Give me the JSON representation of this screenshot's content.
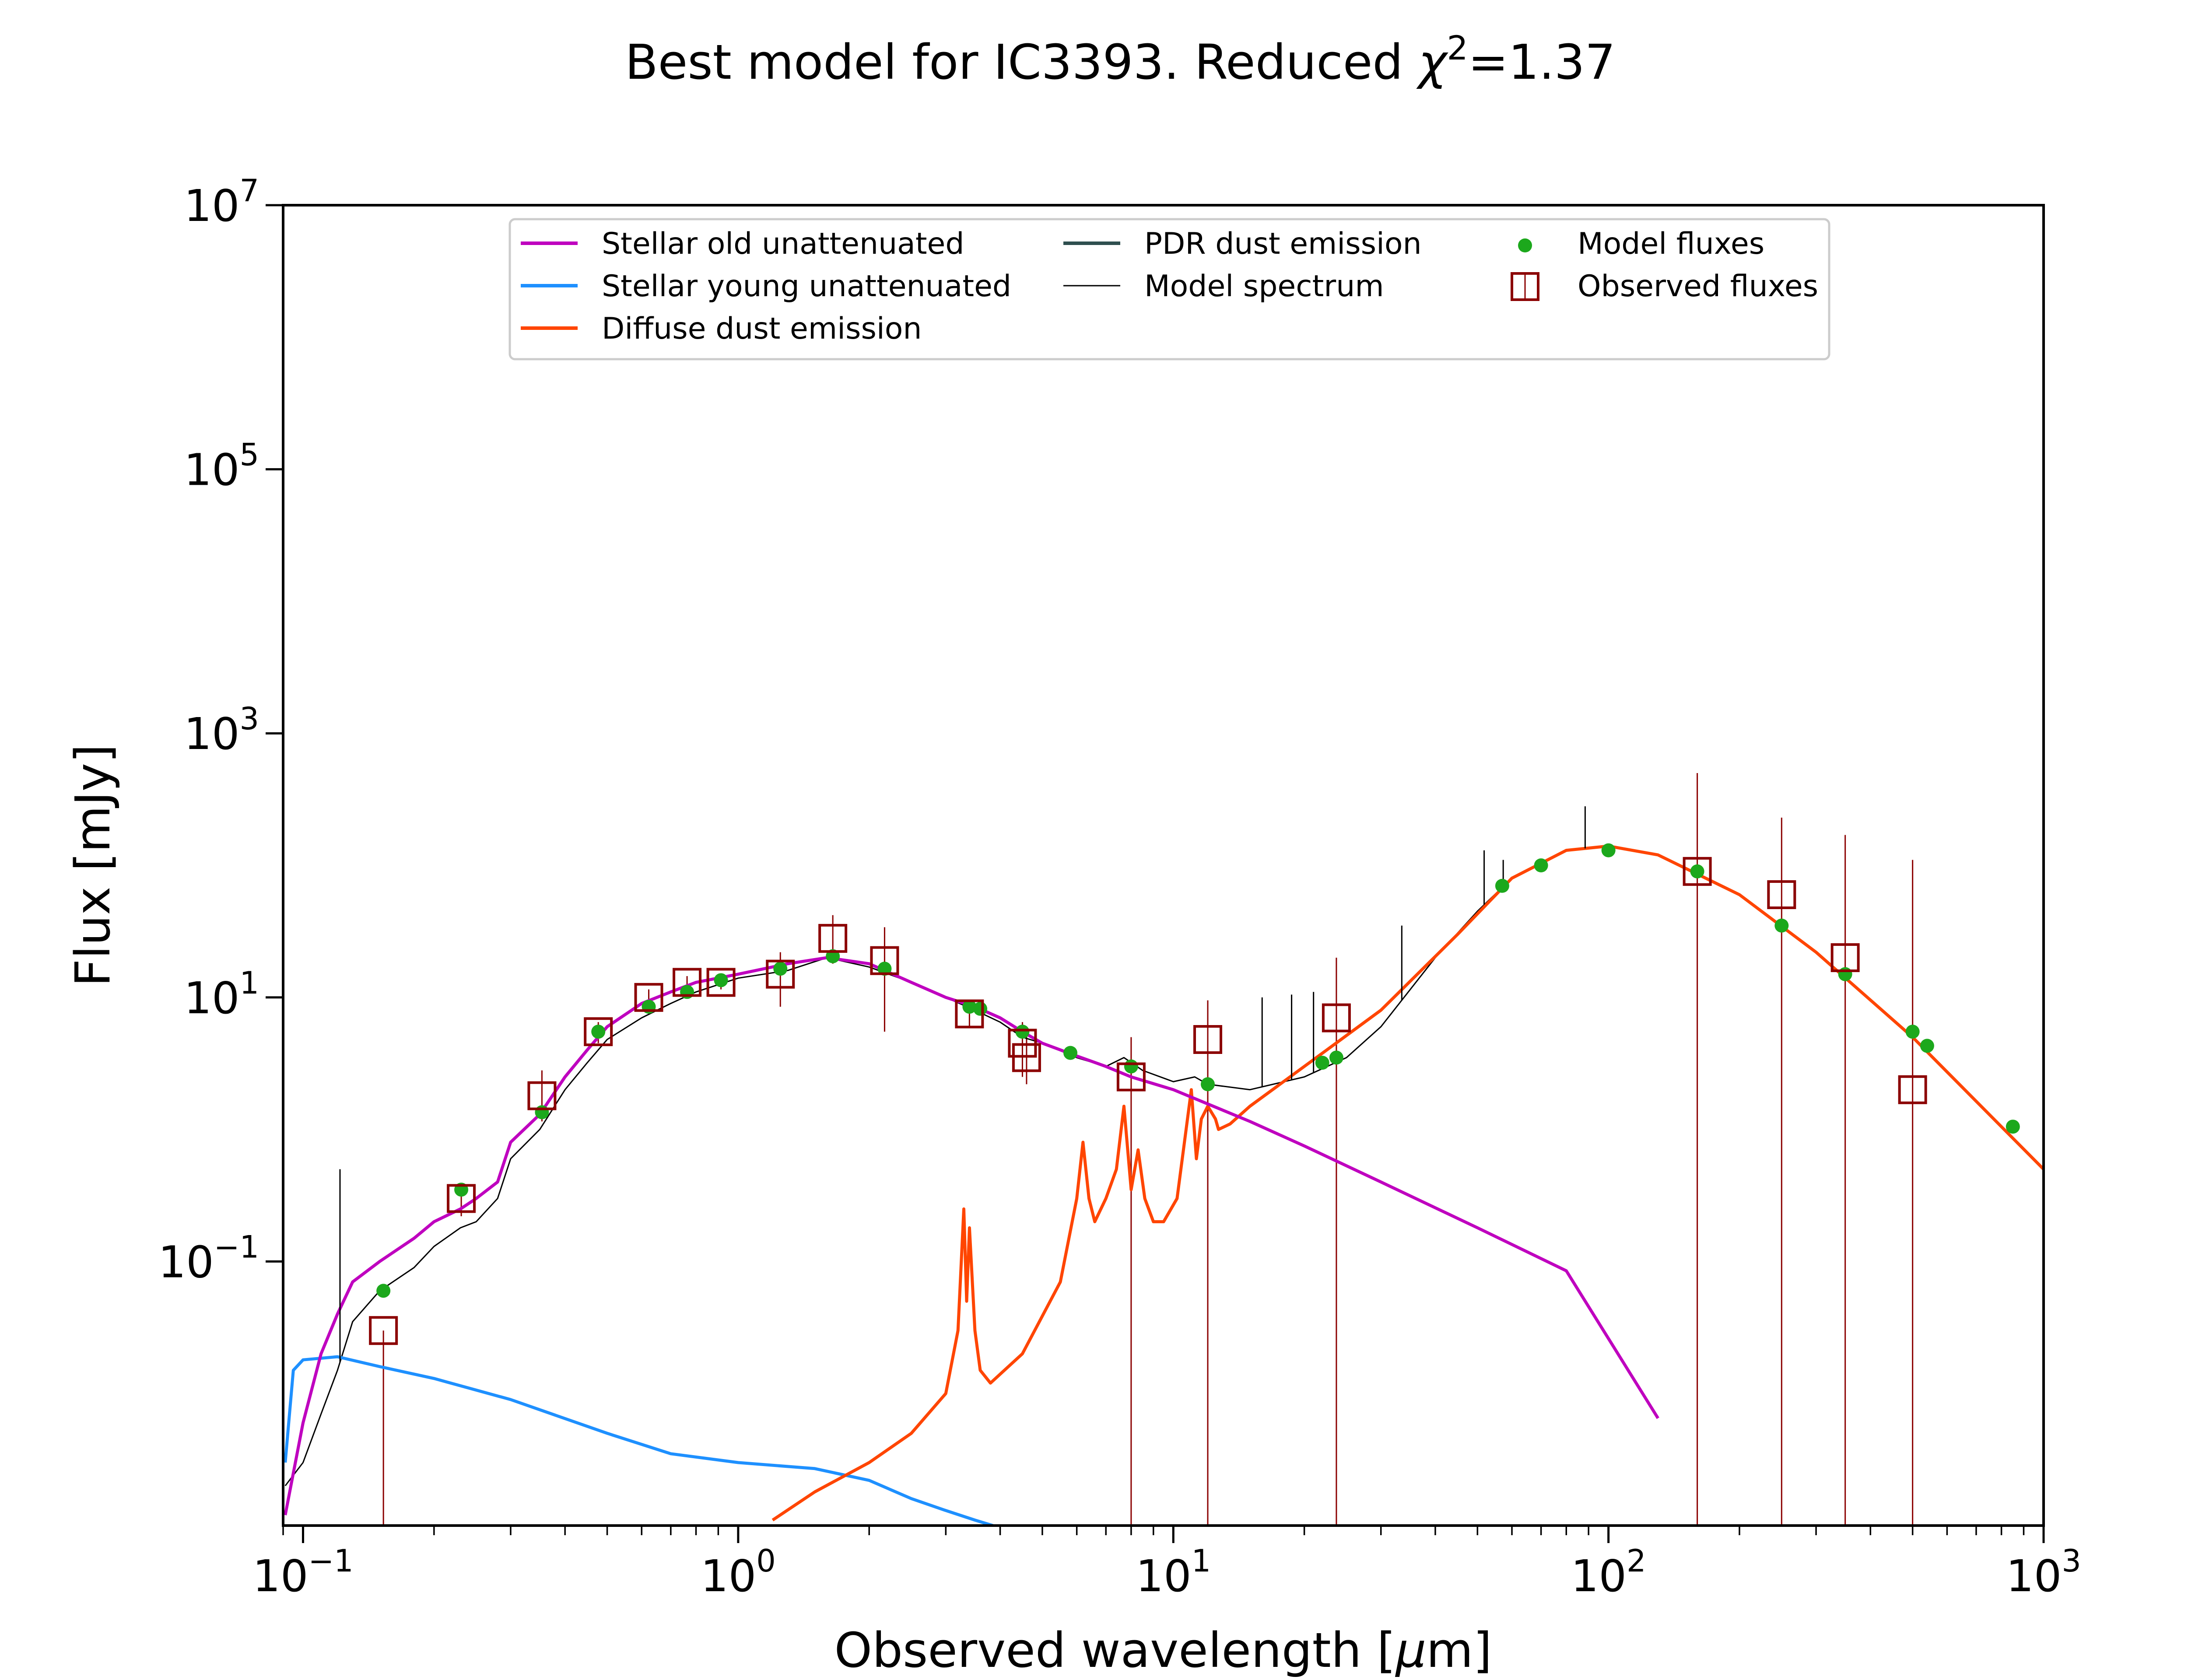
{
  "chart_data": {
    "type": "line",
    "title": "Best model for IC3393. Reduced χ²=1.37",
    "title_parts": [
      "Best model for IC3393. Reduced ",
      "χ",
      "2",
      "=1.37"
    ],
    "xlabel": "Observed wavelength [μm]",
    "xlabel_parts": [
      "Observed wavelength [",
      "μ",
      "m]"
    ],
    "ylabel": "Flux [mJy]",
    "xscale": "log",
    "yscale": "log",
    "xlim": [
      0.09,
      1000
    ],
    "ylim": [
      0.001,
      10000000
    ],
    "grid": false,
    "legend_position": "top-center",
    "x_ticks": [
      {
        "value": 0.1,
        "base": "10",
        "exp": "−1"
      },
      {
        "value": 1,
        "base": "10",
        "exp": "0"
      },
      {
        "value": 10,
        "base": "10",
        "exp": "1"
      },
      {
        "value": 100,
        "base": "10",
        "exp": "2"
      },
      {
        "value": 1000,
        "base": "10",
        "exp": "3"
      }
    ],
    "y_ticks": [
      {
        "value": 0.1,
        "base": "10",
        "exp": "−1"
      },
      {
        "value": 10,
        "base": "10",
        "exp": "1"
      },
      {
        "value": 1000,
        "base": "10",
        "exp": "3"
      },
      {
        "value": 100000,
        "base": "10",
        "exp": "5"
      },
      {
        "value": 10000000,
        "base": "10",
        "exp": "7"
      }
    ],
    "legend": [
      {
        "label": "Stellar old unattenuated",
        "kind": "line",
        "color": "#bf00bf"
      },
      {
        "label": "Stellar young unattenuated",
        "kind": "line",
        "color": "#1e90ff"
      },
      {
        "label": "Diffuse dust emission",
        "kind": "line",
        "color": "#ff4500"
      },
      {
        "label": "PDR dust emission",
        "kind": "line",
        "color": "#2f4f4f"
      },
      {
        "label": "Model spectrum",
        "kind": "line-thin",
        "color": "#000000"
      },
      {
        "label": "Model fluxes",
        "kind": "dot",
        "color": "#1ca81c"
      },
      {
        "label": "Observed fluxes",
        "kind": "square",
        "color": "#8b0000"
      }
    ],
    "series": [
      {
        "name": "Stellar old unattenuated",
        "color": "#bf00bf",
        "x": [
          0.091,
          0.1,
          0.11,
          0.12,
          0.13,
          0.15,
          0.18,
          0.2,
          0.23,
          0.25,
          0.28,
          0.3,
          0.35,
          0.4,
          0.45,
          0.5,
          0.6,
          0.7,
          0.8,
          1.0,
          1.3,
          1.6,
          2.0,
          2.5,
          3.0,
          3.5,
          4.0,
          4.5,
          5.0,
          6.0,
          7.0,
          8.0,
          10.0,
          15.0,
          20.0,
          30.0,
          50.0,
          80.0,
          130.0
        ],
        "y": [
          0.0012,
          0.006,
          0.02,
          0.04,
          0.07,
          0.1,
          0.15,
          0.2,
          0.25,
          0.3,
          0.4,
          0.8,
          1.3,
          2.5,
          4.0,
          6.0,
          9.0,
          11.0,
          13.0,
          15.0,
          18.0,
          20.0,
          18.0,
          13.0,
          10.0,
          8.5,
          7.0,
          5.5,
          4.5,
          3.6,
          3.0,
          2.5,
          2.0,
          1.15,
          0.75,
          0.4,
          0.18,
          0.085,
          0.0065
        ]
      },
      {
        "name": "Stellar young unattenuated",
        "color": "#1e90ff",
        "x": [
          0.091,
          0.095,
          0.1,
          0.12,
          0.15,
          0.2,
          0.3,
          0.5,
          0.7,
          1.0,
          1.5,
          2.0,
          2.5,
          3.0,
          3.5,
          3.85
        ],
        "y": [
          0.003,
          0.015,
          0.018,
          0.019,
          0.016,
          0.013,
          0.009,
          0.005,
          0.0035,
          0.003,
          0.0027,
          0.0022,
          0.0016,
          0.0013,
          0.0011,
          0.001
        ]
      },
      {
        "name": "Diffuse dust emission",
        "color": "#ff4500",
        "x": [
          1.2,
          1.5,
          2.0,
          2.5,
          3.0,
          3.2,
          3.3,
          3.35,
          3.4,
          3.5,
          3.6,
          3.8,
          4.5,
          5.5,
          6.0,
          6.2,
          6.4,
          6.6,
          7.0,
          7.4,
          7.7,
          8.0,
          8.3,
          8.6,
          9.0,
          9.5,
          10.2,
          11.0,
          11.3,
          11.6,
          12.0,
          12.5,
          12.7,
          13.5,
          15.0,
          20.0,
          30.0,
          45.0,
          60.0,
          80.0,
          100.0,
          130.0,
          200.0,
          300.0,
          500.0,
          1000.0
        ],
        "y": [
          0.0011,
          0.0018,
          0.003,
          0.005,
          0.01,
          0.03,
          0.25,
          0.05,
          0.18,
          0.03,
          0.015,
          0.012,
          0.02,
          0.07,
          0.3,
          0.8,
          0.3,
          0.2,
          0.3,
          0.5,
          1.5,
          0.35,
          0.7,
          0.3,
          0.2,
          0.2,
          0.3,
          2.0,
          0.6,
          1.2,
          1.5,
          1.2,
          1.0,
          1.1,
          1.5,
          3.0,
          8.0,
          30.0,
          80.0,
          130.0,
          140.0,
          120.0,
          60.0,
          22.0,
          5.0,
          0.5
        ]
      },
      {
        "name": "Model spectrum",
        "color": "#000000",
        "x": [
          0.091,
          0.1,
          0.11,
          0.12,
          0.13,
          0.15,
          0.18,
          0.2,
          0.23,
          0.25,
          0.28,
          0.3,
          0.35,
          0.4,
          0.45,
          0.5,
          0.6,
          0.7,
          0.8,
          1.0,
          1.3,
          1.6,
          2.0,
          2.5,
          3.0,
          3.5,
          4.0,
          4.5,
          5.0,
          6.0,
          7.0,
          7.7,
          8.5,
          10.0,
          11.2,
          12.0,
          15.0,
          20.0,
          25.0,
          30.0,
          40.0,
          50.0,
          60.0,
          80.0,
          100.0,
          130.0,
          200.0,
          300.0,
          500.0,
          1000.0
        ],
        "y": [
          0.002,
          0.003,
          0.007,
          0.015,
          0.035,
          0.06,
          0.09,
          0.13,
          0.18,
          0.2,
          0.3,
          0.6,
          1.0,
          2.0,
          3.2,
          4.8,
          7.0,
          9.0,
          11.0,
          14.0,
          16.0,
          20.0,
          17.0,
          13.0,
          10.0,
          8.0,
          6.5,
          5.0,
          4.5,
          3.5,
          3.0,
          3.5,
          2.8,
          2.3,
          2.5,
          2.2,
          2.0,
          2.5,
          3.5,
          6.0,
          20.0,
          45.0,
          80.0,
          130.0,
          140.0,
          120.0,
          60.0,
          22.0,
          5.0,
          0.5
        ]
      }
    ],
    "spectrum_spikes": [
      {
        "x": 0.1216,
        "y": 0.5
      },
      {
        "x": 16.0,
        "y": 10.0
      },
      {
        "x": 18.7,
        "y": 10.5
      },
      {
        "x": 21.0,
        "y": 11.0
      },
      {
        "x": 33.5,
        "y": 35.0
      },
      {
        "x": 51.8,
        "y": 130.0
      },
      {
        "x": 57.3,
        "y": 110.0
      },
      {
        "x": 88.4,
        "y": 280.0
      }
    ],
    "model_fluxes": {
      "x": [
        0.153,
        0.231,
        0.354,
        0.477,
        0.623,
        0.763,
        0.913,
        1.25,
        1.65,
        2.17,
        3.4,
        3.6,
        4.5,
        5.8,
        8.0,
        12.0,
        22.0,
        23.7,
        57.0,
        70.0,
        100.0,
        160.0,
        250.0,
        350.0,
        500.0,
        540.0,
        850.0
      ],
      "y": [
        0.06,
        0.35,
        1.35,
        5.5,
        8.5,
        11.0,
        13.5,
        16.5,
        20.5,
        16.5,
        8.5,
        8.2,
        5.5,
        3.8,
        3.0,
        2.2,
        3.2,
        3.5,
        70.0,
        100.0,
        130.0,
        90.0,
        35.0,
        15.0,
        5.5,
        4.3,
        1.05
      ]
    },
    "observed_fluxes": {
      "x": [
        0.153,
        0.231,
        0.354,
        0.477,
        0.623,
        0.763,
        0.913,
        1.25,
        1.65,
        2.17,
        3.4,
        4.5,
        4.6,
        8.0,
        12.0,
        23.7,
        160.0,
        250.0,
        350.0,
        500.0
      ],
      "y": [
        0.03,
        0.3,
        1.8,
        5.5,
        10.0,
        13.0,
        13.0,
        15.0,
        28.0,
        19.0,
        7.5,
        4.5,
        3.5,
        2.5,
        4.8,
        7.0,
        90.0,
        60.0,
        20.0,
        2.0
      ],
      "err_low": [
        0.001,
        0.22,
        1.15,
        4.5,
        8.5,
        11.5,
        11.5,
        8.5,
        18.0,
        5.5,
        6.0,
        2.5,
        2.2,
        0.001,
        0.001,
        0.001,
        0.001,
        0.001,
        0.001,
        0.001
      ],
      "err_high": [
        0.03,
        0.38,
        2.8,
        6.5,
        11.5,
        14.5,
        14.5,
        22.0,
        42.0,
        34.0,
        9.0,
        6.5,
        5.2,
        5.0,
        9.5,
        20.0,
        500.0,
        230.0,
        170.0,
        110.0
      ]
    }
  }
}
